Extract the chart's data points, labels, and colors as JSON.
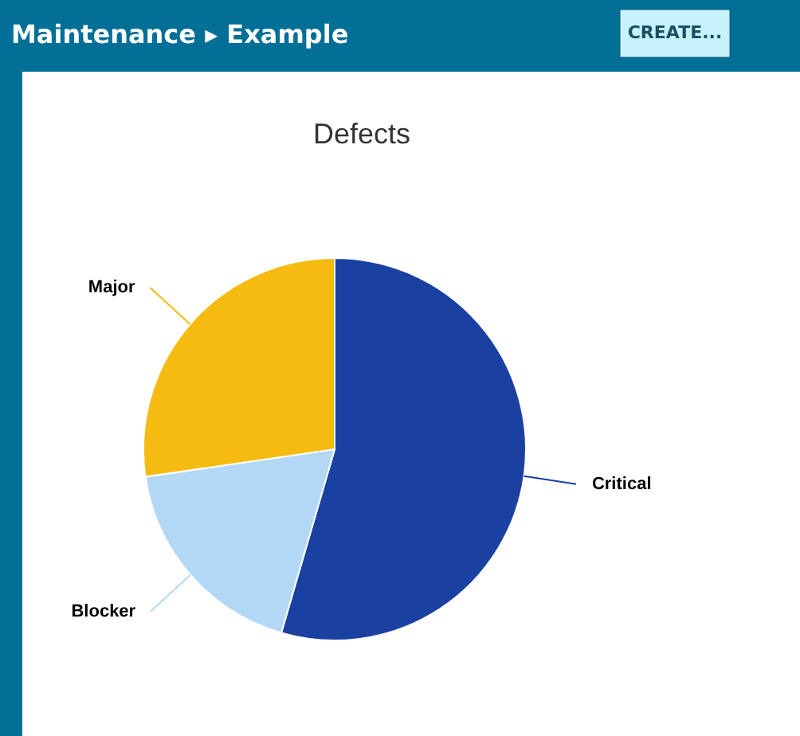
{
  "chart_data": {
    "type": "pie",
    "title": "Defects",
    "categories": [
      "Critical",
      "Blocker",
      "Major"
    ],
    "values": [
      54.5,
      18.2,
      27.3
    ],
    "colors": [
      "#1a40a2",
      "#b3d8f6",
      "#f6bb10"
    ],
    "annotations": [
      "Maintenance ▸ Example",
      "CREATE..."
    ]
  }
}
